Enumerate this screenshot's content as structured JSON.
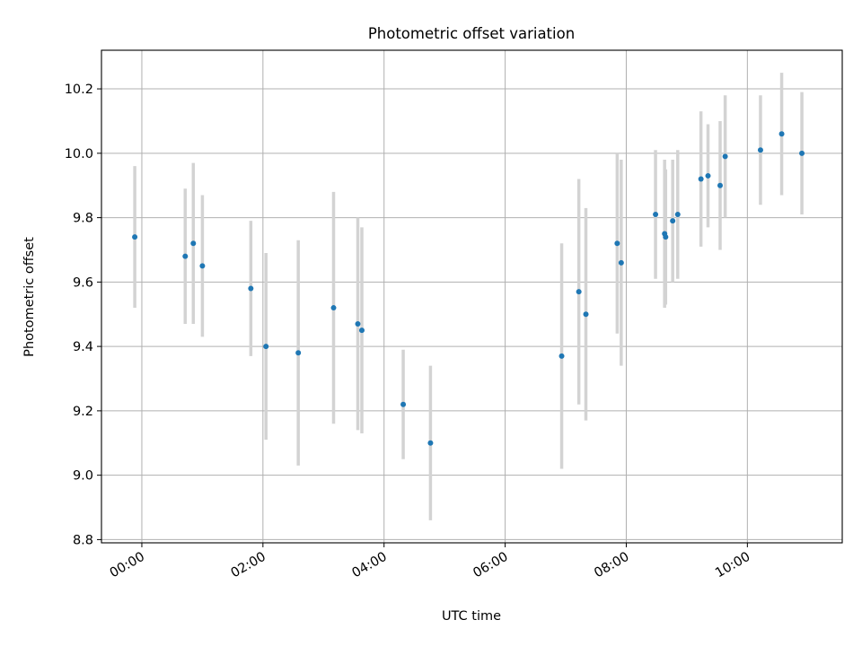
{
  "chart_data": {
    "type": "scatter",
    "title": "Photometric offset variation",
    "xlabel": "UTC time",
    "ylabel": "Photometric offset",
    "x_ticks": [
      "00:00",
      "02:00",
      "04:00",
      "06:00",
      "08:00",
      "10:00"
    ],
    "y_ticks": [
      "8.8",
      "9.0",
      "9.2",
      "9.4",
      "9.6",
      "9.8",
      "10.0",
      "10.2"
    ],
    "xlim": [
      "23:20",
      "11:34"
    ],
    "ylim": [
      8.79,
      10.32
    ],
    "grid": true,
    "marker_color": "#1f77b4",
    "errorbar_color": "#d3d3d3",
    "points": [
      {
        "time": "23:53",
        "y": 9.74,
        "yerr": 0.22
      },
      {
        "time": "00:43",
        "y": 9.68,
        "yerr": 0.21
      },
      {
        "time": "00:51",
        "y": 9.72,
        "yerr": 0.25
      },
      {
        "time": "01:00",
        "y": 9.65,
        "yerr": 0.22
      },
      {
        "time": "01:48",
        "y": 9.58,
        "yerr": 0.21
      },
      {
        "time": "02:03",
        "y": 9.4,
        "yerr": 0.29
      },
      {
        "time": "02:35",
        "y": 9.38,
        "yerr": 0.35
      },
      {
        "time": "03:10",
        "y": 9.52,
        "yerr": 0.36
      },
      {
        "time": "03:34",
        "y": 9.47,
        "yerr": 0.33
      },
      {
        "time": "03:38",
        "y": 9.45,
        "yerr": 0.32
      },
      {
        "time": "04:19",
        "y": 9.22,
        "yerr": 0.17
      },
      {
        "time": "04:46",
        "y": 9.1,
        "yerr": 0.24
      },
      {
        "time": "06:56",
        "y": 9.37,
        "yerr": 0.35
      },
      {
        "time": "07:13",
        "y": 9.57,
        "yerr": 0.35
      },
      {
        "time": "07:20",
        "y": 9.5,
        "yerr": 0.33
      },
      {
        "time": "07:51",
        "y": 9.72,
        "yerr": 0.28
      },
      {
        "time": "07:55",
        "y": 9.66,
        "yerr": 0.32
      },
      {
        "time": "08:29",
        "y": 9.81,
        "yerr": 0.2
      },
      {
        "time": "08:38",
        "y": 9.75,
        "yerr": 0.23
      },
      {
        "time": "08:39",
        "y": 9.74,
        "yerr": 0.21
      },
      {
        "time": "08:46",
        "y": 9.79,
        "yerr": 0.19
      },
      {
        "time": "08:51",
        "y": 9.81,
        "yerr": 0.2
      },
      {
        "time": "09:14",
        "y": 9.92,
        "yerr": 0.21
      },
      {
        "time": "09:21",
        "y": 9.93,
        "yerr": 0.16
      },
      {
        "time": "09:33",
        "y": 9.9,
        "yerr": 0.2
      },
      {
        "time": "09:38",
        "y": 9.99,
        "yerr": 0.19
      },
      {
        "time": "10:13",
        "y": 10.01,
        "yerr": 0.17
      },
      {
        "time": "10:34",
        "y": 10.06,
        "yerr": 0.19
      },
      {
        "time": "10:54",
        "y": 10.0,
        "yerr": 0.19
      }
    ]
  }
}
